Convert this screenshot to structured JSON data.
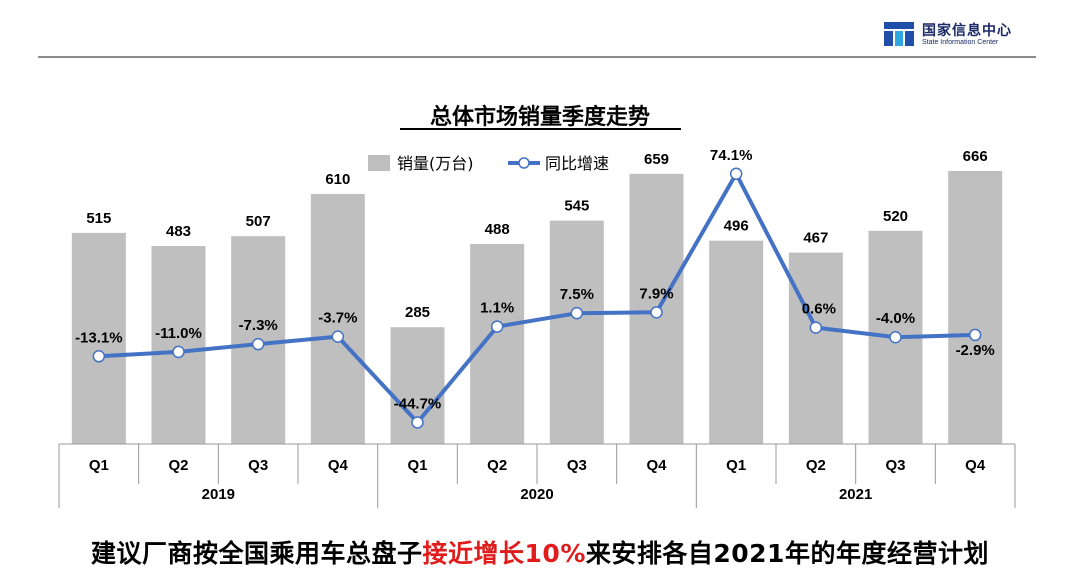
{
  "header": {
    "org_name_cn": "国家信息中心",
    "org_name_en": "State Information Center"
  },
  "chart_data": {
    "type": "bar",
    "title": "总体市场销量季度走势",
    "categories": [
      "Q1",
      "Q2",
      "Q3",
      "Q4",
      "Q1",
      "Q2",
      "Q3",
      "Q4",
      "Q1",
      "Q2",
      "Q3",
      "Q4"
    ],
    "years": [
      {
        "label": "2019",
        "quarters": 4
      },
      {
        "label": "2020",
        "quarters": 4
      },
      {
        "label": "2021",
        "quarters": 4
      }
    ],
    "series": [
      {
        "name": "销量(万台)",
        "kind": "bar",
        "color": "#bfbfbf",
        "values": [
          515,
          483,
          507,
          610,
          285,
          488,
          545,
          659,
          496,
          467,
          520,
          666
        ],
        "labels": [
          "515",
          "483",
          "507",
          "610",
          "285",
          "488",
          "545",
          "659",
          "496",
          "467",
          "520",
          "666"
        ]
      },
      {
        "name": "同比增速",
        "kind": "line",
        "color": "#4472c4",
        "values": [
          -13.1,
          -11.0,
          -7.3,
          -3.7,
          -44.7,
          1.1,
          7.5,
          7.9,
          74.1,
          0.6,
          -4.0,
          -2.9
        ],
        "labels": [
          "-13.1%",
          "-11.0%",
          "-7.3%",
          "-3.7%",
          "-44.7%",
          "1.1%",
          "7.5%",
          "7.9%",
          "74.1%",
          "0.6%",
          "-4.0%",
          "-2.9%"
        ]
      }
    ],
    "bar_axis_range": [
      0,
      700
    ],
    "line_axis_range": [
      -55,
      95
    ],
    "legend_position": "top-center",
    "grid": false
  },
  "footer": {
    "note_before": "建议厂商按全国乘用车总盘子",
    "note_highlight": "接近增长10%",
    "note_after": "来安排各自2021年的年度经营计划"
  }
}
